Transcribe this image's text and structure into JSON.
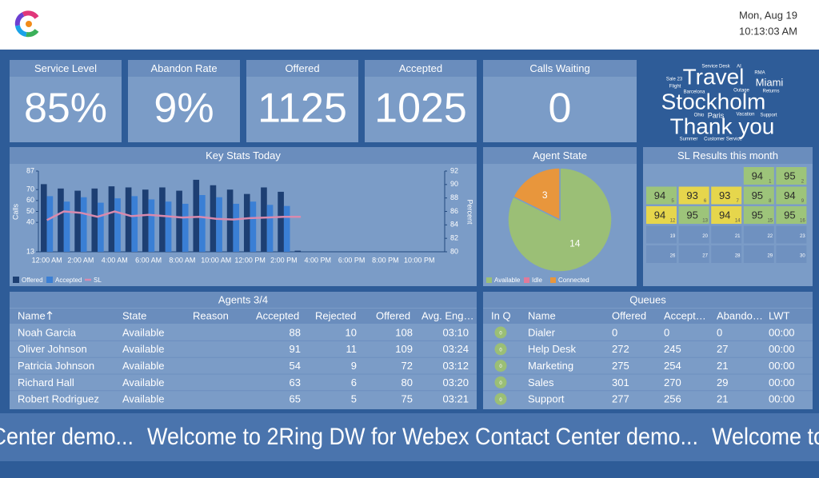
{
  "header": {
    "date": "Mon, Aug 19",
    "time": "10:13:03 AM"
  },
  "tiles": [
    {
      "title": "Service Level",
      "value": "85%"
    },
    {
      "title": "Abandon Rate",
      "value": "9%"
    },
    {
      "title": "Offered",
      "value": "1125"
    },
    {
      "title": "Accepted",
      "value": "1025"
    },
    {
      "title": "Calls Waiting",
      "value": "0"
    }
  ],
  "word_cloud": [
    "Service Desk",
    "AI",
    "RMA",
    "Sale 23",
    "Travel",
    "Miami",
    "Flight",
    "Barcelona",
    "Outage",
    "Returns",
    "Stockholm",
    "Ohio",
    "Paris",
    "Vacation",
    "Support",
    "Thank you",
    "Summer",
    "Customer Service"
  ],
  "chart_data": [
    {
      "type": "bar",
      "title": "Key Stats Today",
      "y_label": "Calls",
      "y2_label": "Percent",
      "categories": [
        "12:00 AM",
        null,
        "2:00 AM",
        null,
        "4:00 AM",
        null,
        "6:00 AM",
        null,
        "8:00 AM",
        null,
        "10:00 AM",
        null,
        "12:00 PM",
        null,
        "2:00 PM",
        null,
        "4:00 PM",
        null,
        "6:00 PM",
        null,
        "8:00 PM",
        null,
        "10:00 PM",
        null
      ],
      "ylim": [
        13,
        87
      ],
      "yticks": [
        13,
        40,
        50,
        60,
        70,
        87
      ],
      "y2lim": [
        80,
        92
      ],
      "y2ticks": [
        80,
        82,
        84,
        86,
        88,
        90,
        92
      ],
      "series": [
        {
          "name": "Offered",
          "type": "bar",
          "color": "#1d3f73",
          "values": [
            75,
            71,
            69,
            71,
            73,
            72,
            70,
            72,
            69,
            79,
            74,
            70,
            66,
            72,
            68,
            14,
            null,
            null,
            null,
            null,
            null,
            null,
            null,
            null
          ]
        },
        {
          "name": "Accepted",
          "type": "bar",
          "color": "#3a7fd5",
          "values": [
            64,
            59,
            63,
            58,
            62,
            64,
            61,
            59,
            57,
            65,
            63,
            57,
            59,
            56,
            55,
            13,
            null,
            null,
            null,
            null,
            null,
            null,
            null,
            null
          ]
        },
        {
          "name": "SL",
          "type": "line",
          "axis": "y2",
          "color": "#d88aae",
          "values": [
            84.7,
            86.0,
            85.8,
            85.2,
            86.0,
            85.3,
            85.5,
            85.3,
            85.1,
            85.2,
            84.9,
            84.8,
            85.0,
            85.1,
            85.2,
            85.2,
            null,
            null,
            null,
            null,
            null,
            null,
            null,
            null
          ]
        }
      ]
    },
    {
      "type": "pie",
      "title": "Agent State",
      "categories": [
        "Available",
        "Idle",
        "Connected"
      ],
      "values": [
        14,
        0,
        3
      ],
      "colors": [
        "#9bbf76",
        "#e07a9a",
        "#e8963c"
      ]
    }
  ],
  "sl_results": {
    "title": "SL Results this month",
    "weeks": [
      [
        null,
        null,
        null,
        {
          "day": "1",
          "value": "94",
          "color": "#9dc47a"
        },
        {
          "day": "2",
          "value": "95",
          "color": "#9dc47a"
        }
      ],
      [
        {
          "day": "5",
          "value": "94",
          "color": "#9dc47a"
        },
        {
          "day": "6",
          "value": "93",
          "color": "#e6d64c"
        },
        {
          "day": "7",
          "value": "93",
          "color": "#e6d64c"
        },
        {
          "day": "8",
          "value": "95",
          "color": "#9dc47a"
        },
        {
          "day": "9",
          "value": "94",
          "color": "#9dc47a"
        }
      ],
      [
        {
          "day": "12",
          "value": "94",
          "color": "#e6d64c"
        },
        {
          "day": "13",
          "value": "95",
          "color": "#9dc47a"
        },
        {
          "day": "14",
          "value": "94",
          "color": "#e6d64c"
        },
        {
          "day": "15",
          "value": "95",
          "color": "#9dc47a"
        },
        {
          "day": "16",
          "value": "95",
          "color": "#9dc47a"
        }
      ],
      [
        {
          "day": "19"
        },
        {
          "day": "20"
        },
        {
          "day": "21"
        },
        {
          "day": "22"
        },
        {
          "day": "23"
        }
      ],
      [
        {
          "day": "26"
        },
        {
          "day": "27"
        },
        {
          "day": "28"
        },
        {
          "day": "29"
        },
        {
          "day": "30"
        }
      ]
    ]
  },
  "agents": {
    "title": "Agents 3/4",
    "columns": [
      "Name",
      "State",
      "Reason",
      "Accepted",
      "Rejected",
      "Offered",
      "Avg. Eng…"
    ],
    "rows": [
      [
        "Noah Garcia",
        "Available",
        null,
        88,
        10,
        108,
        "03:10"
      ],
      [
        "Oliver Johnson",
        "Available",
        null,
        91,
        11,
        109,
        "03:24"
      ],
      [
        "Patricia Johnson",
        "Available",
        null,
        54,
        9,
        72,
        "03:12"
      ],
      [
        "Richard Hall",
        "Available",
        null,
        63,
        6,
        80,
        "03:20"
      ],
      [
        "Robert Rodriguez",
        "Available",
        null,
        65,
        5,
        75,
        "03:21"
      ]
    ]
  },
  "queues": {
    "title": "Queues",
    "columns": [
      "In Q",
      "Name",
      "Offered",
      "Accept…",
      "Abando…",
      "LWT"
    ],
    "rows": [
      [
        0,
        "Dialer",
        0,
        0,
        0,
        "00:00"
      ],
      [
        0,
        "Help Desk",
        272,
        245,
        27,
        "00:00"
      ],
      [
        0,
        "Marketing",
        275,
        254,
        21,
        "00:00"
      ],
      [
        0,
        "Sales",
        301,
        270,
        29,
        "00:00"
      ],
      [
        0,
        "Support",
        277,
        256,
        21,
        "00:00"
      ]
    ]
  },
  "ticker": "Welcome to 2Ring DW for Webex Contact Center demo..."
}
